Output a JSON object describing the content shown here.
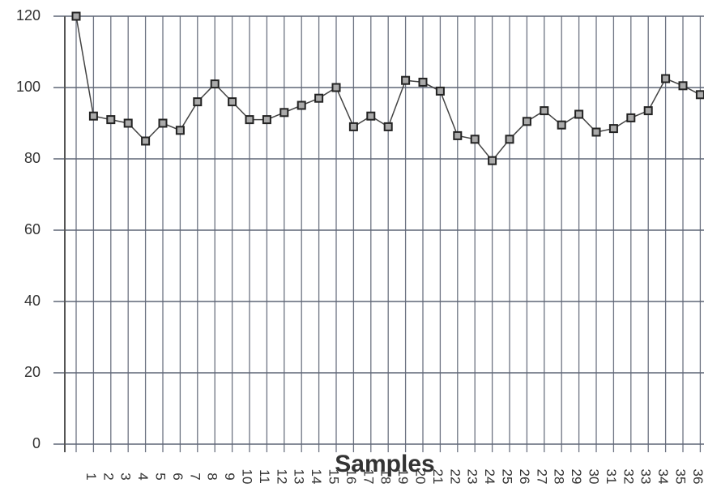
{
  "chart_data": {
    "type": "line",
    "x_label": "Samples",
    "categories": [
      null,
      "1",
      "2",
      "3",
      "4",
      "5",
      "6",
      "7",
      "8",
      "9",
      "10",
      "11",
      "12",
      "13",
      "14",
      "15",
      "16",
      "17",
      "18",
      "19",
      "20",
      "21",
      "22",
      "23",
      "24",
      "25",
      "26",
      "27",
      "28",
      "29",
      "30",
      "31",
      "32",
      "33",
      "34",
      "35",
      "36"
    ],
    "series": [
      {
        "name": "Samples",
        "color": "#444444",
        "values": [
          120,
          92,
          91,
          90,
          85,
          90,
          88,
          96,
          101,
          96,
          91,
          91,
          93,
          95,
          97,
          100,
          89,
          92,
          89,
          102,
          101.5,
          99,
          86.5,
          85.5,
          79.5,
          85.5,
          90.5,
          93.5,
          89.5,
          92.5,
          87.5,
          88.5,
          91.5,
          93.5,
          102.5,
          100.5,
          98
        ]
      }
    ],
    "ylim": [
      0,
      120
    ],
    "yticks": [
      0,
      20,
      40,
      60,
      80,
      100,
      120
    ],
    "grid": true
  }
}
